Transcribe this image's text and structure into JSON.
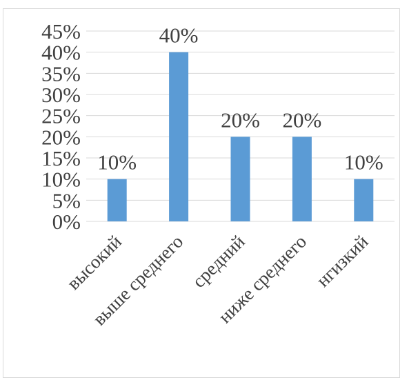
{
  "chart_data": {
    "type": "bar",
    "categories": [
      "высокий",
      "выше среднего",
      "средний",
      "ниже среднего",
      "нгизкий"
    ],
    "values": [
      10,
      40,
      20,
      20,
      10
    ],
    "value_labels": [
      "10%",
      "40%",
      "20%",
      "20%",
      "10%"
    ],
    "title": "",
    "xlabel": "",
    "ylabel": "",
    "ylim": [
      0,
      45
    ],
    "y_ticks": [
      0,
      5,
      10,
      15,
      20,
      25,
      30,
      35,
      40,
      45
    ],
    "y_tick_labels": [
      "0%",
      "5%",
      "10%",
      "15%",
      "20%",
      "25%",
      "30%",
      "35%",
      "40%",
      "45%"
    ],
    "grid": true,
    "legend": "none",
    "bar_color": "#5b9bd5"
  }
}
